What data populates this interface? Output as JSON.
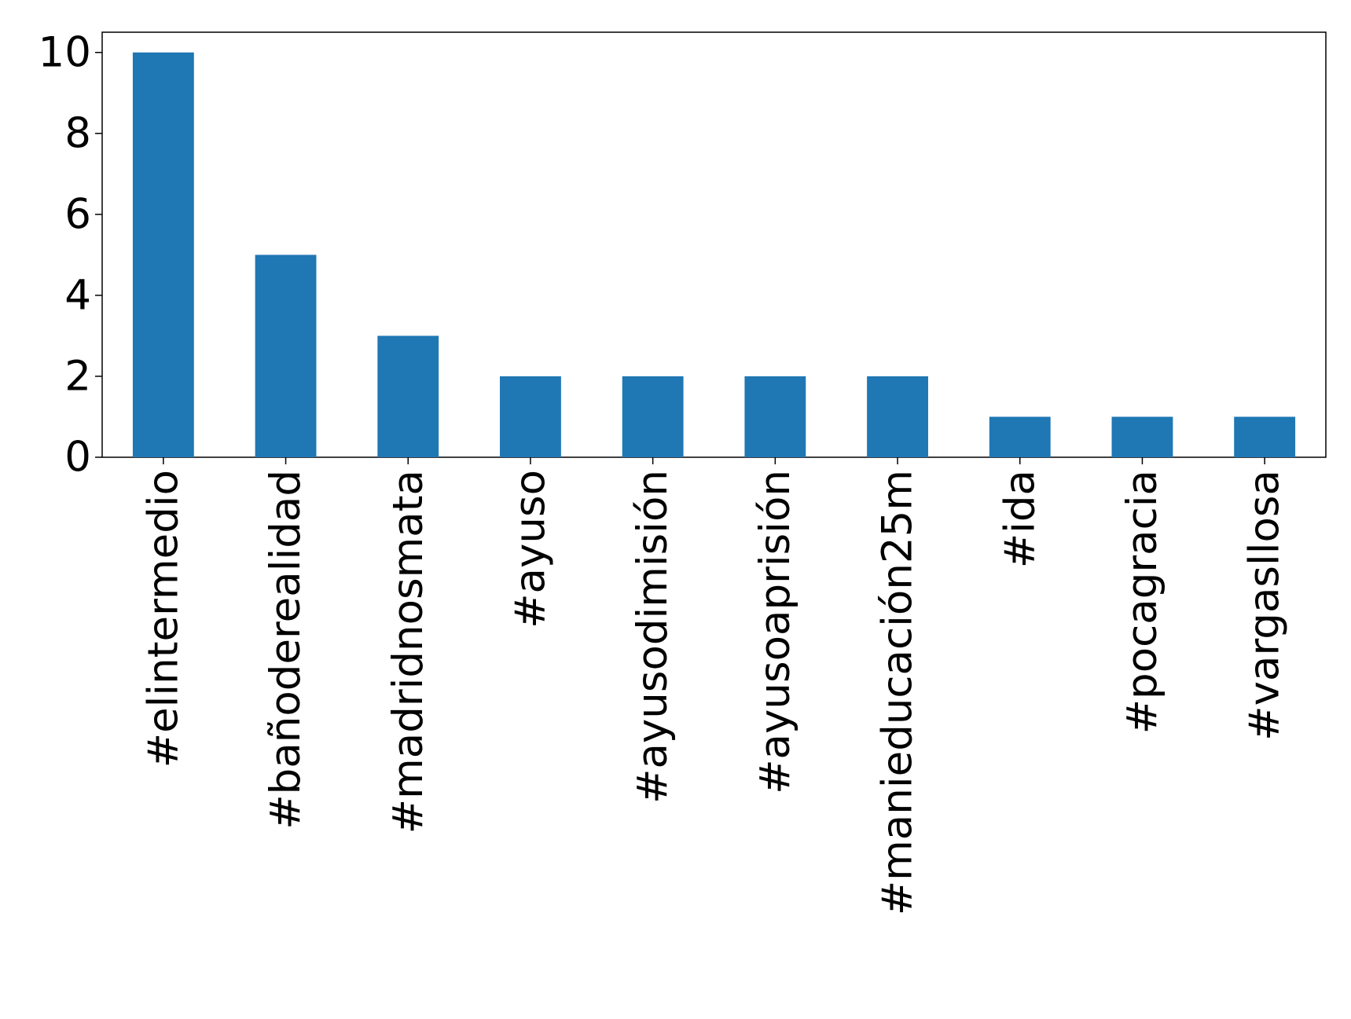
{
  "chart_data": {
    "type": "bar",
    "categories": [
      "#elintermedio",
      "#bañoderealidad",
      "#madridnosmata",
      "#ayuso",
      "#ayusodimisión",
      "#ayusoaprisión",
      "#manieducación25m",
      "#ida",
      "#pocagracia",
      "#vargasllosa"
    ],
    "values": [
      10,
      5,
      3,
      2,
      2,
      2,
      2,
      1,
      1,
      1
    ],
    "color": "#1f77b4",
    "ylim": [
      0,
      10.5
    ],
    "yticks": [
      0,
      2,
      4,
      6,
      8,
      10
    ],
    "grid": false
  }
}
